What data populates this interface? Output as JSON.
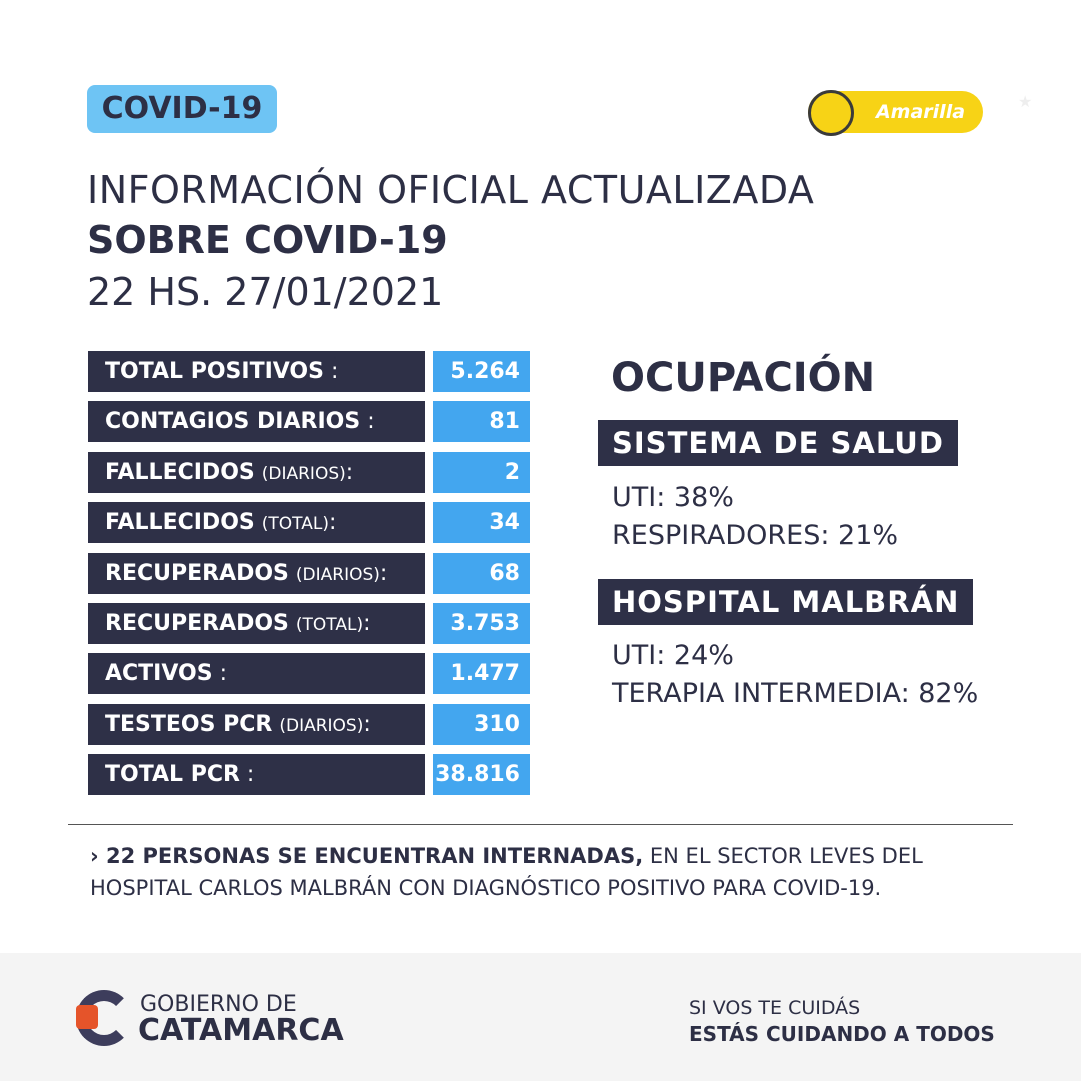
{
  "header": {
    "badge": "COVID-19",
    "alert_level": "Amarilla",
    "alert_color": "#f7d316",
    "title_line1": "INFORMACIÓN OFICIAL ACTUALIZADA",
    "title_line2": "SOBRE COVID-19",
    "timestamp": "22 HS. 27/01/2021"
  },
  "stats": [
    {
      "label": "TOTAL POSITIVOS",
      "qualifier": "",
      "value": "5.264"
    },
    {
      "label": "CONTAGIOS DIARIOS",
      "qualifier": "",
      "value": "81"
    },
    {
      "label": "FALLECIDOS",
      "qualifier": "(DIARIOS)",
      "value": "2"
    },
    {
      "label": "FALLECIDOS",
      "qualifier": "(TOTAL)",
      "value": "34"
    },
    {
      "label": "RECUPERADOS",
      "qualifier": "(DIARIOS)",
      "value": "68"
    },
    {
      "label": "RECUPERADOS",
      "qualifier": "(TOTAL)",
      "value": "3.753"
    },
    {
      "label": "ACTIVOS",
      "qualifier": "",
      "value": "1.477"
    },
    {
      "label": "TESTEOS PCR",
      "qualifier": "(DIARIOS)",
      "value": "310"
    },
    {
      "label": "TOTAL PCR",
      "qualifier": "",
      "value": "38.816"
    }
  ],
  "occupancy": {
    "title": "OCUPACIÓN",
    "sections": [
      {
        "title": "SISTEMA DE SALUD",
        "lines": [
          "UTI: 38%",
          "RESPIRADORES: 21%"
        ]
      },
      {
        "title": "HOSPITAL MALBRÁN",
        "lines": [
          "UTI: 24%",
          "TERAPIA INTERMEDIA: 82%"
        ]
      }
    ]
  },
  "note": {
    "bold": "22 PERSONAS SE ENCUENTRAN INTERNADAS,",
    "rest": " EN EL SECTOR LEVES DEL HOSPITAL CARLOS MALBRÁN CON DIAGNÓSTICO POSITIVO PARA COVID-19."
  },
  "footer": {
    "logo_line1": "GOBIERNO DE",
    "logo_line2": "CATAMARCA",
    "slogan_line1": "SI VOS TE CUIDÁS",
    "slogan_line2": "ESTÁS CUIDANDO A TODOS"
  }
}
